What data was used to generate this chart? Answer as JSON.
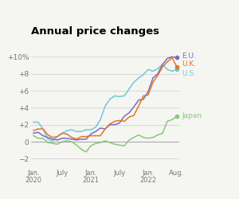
{
  "title": "Annual price changes",
  "title_fontsize": 9.5,
  "title_fontweight": "bold",
  "ylim": [
    -3,
    12
  ],
  "yticks": [
    -2,
    0,
    2,
    4,
    6,
    8,
    10
  ],
  "ytick_labels": [
    "−2",
    "0",
    "+2",
    "+4",
    "+6",
    "+8",
    "+10%"
  ],
  "background_color": "#f5f5f2",
  "grid_color": "#cccccc",
  "line_color_eu": "#7b68c8",
  "line_color_uk": "#e07820",
  "line_color_us": "#70c8d8",
  "line_color_japan": "#88c878",
  "label_eu": "E.U.",
  "label_uk": "U.K.",
  "label_us": "U.S.",
  "label_japan": "Japan",
  "eu_data": [
    1.0,
    1.1,
    0.7,
    0.5,
    0.3,
    0.2,
    0.4,
    0.4,
    0.3,
    0.2,
    0.3,
    0.3,
    0.9,
    1.2,
    1.6,
    1.5,
    2.0,
    2.0,
    2.2,
    3.0,
    3.4,
    4.1,
    4.9,
    5.0,
    5.9,
    7.5,
    8.0,
    9.1,
    9.8,
    10.0,
    9.9
  ],
  "uk_data": [
    1.3,
    1.5,
    1.5,
    0.8,
    0.5,
    0.6,
    1.0,
    0.9,
    0.5,
    0.3,
    0.6,
    0.6,
    0.7,
    0.7,
    0.7,
    1.5,
    2.1,
    2.4,
    2.5,
    2.4,
    2.9,
    3.1,
    4.2,
    5.4,
    5.5,
    7.0,
    7.8,
    8.8,
    9.4,
    9.9,
    8.8
  ],
  "us_data": [
    2.3,
    2.3,
    1.5,
    0.3,
    0.1,
    0.6,
    1.0,
    1.3,
    1.4,
    1.2,
    1.2,
    1.4,
    1.4,
    1.7,
    2.6,
    4.2,
    5.0,
    5.4,
    5.3,
    5.4,
    6.2,
    7.0,
    7.5,
    7.9,
    8.5,
    8.3,
    8.6,
    9.1,
    8.5,
    8.3,
    8.5
  ],
  "japan_data": [
    0.7,
    0.4,
    0.4,
    -0.1,
    -0.2,
    -0.3,
    0.0,
    0.1,
    0.0,
    -0.4,
    -0.9,
    -1.2,
    -0.5,
    -0.2,
    -0.1,
    0.1,
    -0.1,
    -0.3,
    -0.4,
    -0.5,
    0.2,
    0.5,
    0.8,
    0.5,
    0.4,
    0.5,
    0.8,
    1.0,
    2.4,
    2.6,
    3.0
  ],
  "n_points": 31,
  "xtick_positions": [
    0,
    6,
    12,
    18,
    24,
    30
  ],
  "xtick_labels": [
    "Jan.\n2020",
    "July",
    "Jan.\n2021",
    "July",
    "Jan.\n2022",
    "Aug."
  ]
}
